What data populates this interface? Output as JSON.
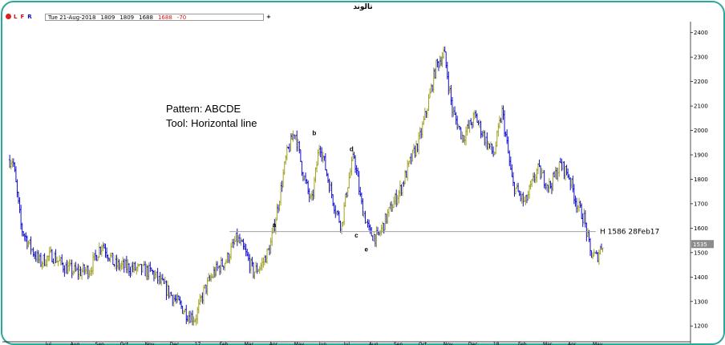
{
  "window": {
    "title": "تالوند"
  },
  "infobar": {
    "flags": [
      "L",
      "F",
      "R"
    ],
    "date": "Tue 21-Aug-2018",
    "open": "1809",
    "high": "1809",
    "low": "1688",
    "close": "1688",
    "change": "-70",
    "add_tab": "+"
  },
  "colors": {
    "frame": "#2aa89a",
    "up": "#a0a020",
    "down": "#1010d0",
    "hline": "#a0a0a0",
    "last_price_bg": "#8c8c8c",
    "highlight": "#e060e0"
  },
  "chart_data": {
    "type": "bar",
    "subtype": "ohlc",
    "title": "تالوند",
    "annotations": {
      "pattern": "Pattern: ABCDE",
      "tool": "Tool: Horizontal line"
    },
    "wave_labels": [
      {
        "label": "a",
        "x": "Apr-2017",
        "y": 1614
      },
      {
        "label": "b",
        "x": "Jun-2017",
        "y": 1990
      },
      {
        "label": "c",
        "x": "Jul-2017",
        "y": 1572
      },
      {
        "label": "d",
        "x": "Jul-2017",
        "y": 1925
      },
      {
        "label": "e",
        "x": "Aug-2017",
        "y": 1515
      }
    ],
    "horizontal_line": {
      "value": 1586,
      "label": "H 1586 28Feb17"
    },
    "last_price": "1535",
    "y_ticks": [
      1200,
      1300,
      1400,
      1500,
      1600,
      1700,
      1800,
      1900,
      2000,
      2100,
      2200,
      2300,
      2400
    ],
    "ylim": [
      1145,
      2445
    ],
    "x_ticks": [
      "Jul",
      "Aug",
      "Sep",
      "Oct",
      "Nov",
      "Dec",
      "17",
      "Feb",
      "Mar",
      "Apr",
      "May",
      "Jun",
      "Jul",
      "Aug",
      "Sep",
      "Oct",
      "Nov",
      "Dec",
      "18",
      "Feb",
      "Mar",
      "Apr",
      "May"
    ],
    "series": [
      {
        "kind": "approximate_close_path",
        "points": [
          [
            "Jun-2016",
            1880
          ],
          [
            "Jun-2016",
            1600
          ],
          [
            "Jun-2016",
            1530
          ],
          [
            "Jul-2016",
            1460
          ],
          [
            "Jul-2016",
            1490
          ],
          [
            "Aug-2016",
            1440
          ],
          [
            "Aug-2016",
            1420
          ],
          [
            "Sep-2016",
            1430
          ],
          [
            "Sep-2016",
            1540
          ],
          [
            "Oct-2016",
            1450
          ],
          [
            "Oct-2016",
            1440
          ],
          [
            "Nov-2016",
            1430
          ],
          [
            "Nov-2016",
            1420
          ],
          [
            "Dec-2016",
            1360
          ],
          [
            "Dec-2016",
            1300
          ],
          [
            "Jan-2017",
            1250
          ],
          [
            "Jan-2017",
            1230
          ],
          [
            "Jan-2017",
            1340
          ],
          [
            "Feb-2017",
            1420
          ],
          [
            "Feb-2017",
            1470
          ],
          [
            "Mar-2017",
            1560
          ],
          [
            "Mar-2017",
            1500
          ],
          [
            "Mar-2017",
            1420
          ],
          [
            "Apr-2017",
            1450
          ],
          [
            "Apr-2017",
            1520
          ],
          [
            "Apr-2017",
            1700
          ],
          [
            "May-2017",
            1900
          ],
          [
            "May-2017",
            2000
          ],
          [
            "May-2017",
            1820
          ],
          [
            "Jun-2017",
            1700
          ],
          [
            "Jun-2017",
            1950
          ],
          [
            "Jun-2017",
            1800
          ],
          [
            "Jul-2017",
            1680
          ],
          [
            "Jul-2017",
            1610
          ],
          [
            "Jul-2017",
            1780
          ],
          [
            "Jul-2017",
            1900
          ],
          [
            "Aug-2017",
            1700
          ],
          [
            "Aug-2017",
            1580
          ],
          [
            "Aug-2017",
            1560
          ],
          [
            "Sep-2017",
            1660
          ],
          [
            "Sep-2017",
            1760
          ],
          [
            "Oct-2017",
            1880
          ],
          [
            "Oct-2017",
            1960
          ],
          [
            "Oct-2017",
            2100
          ],
          [
            "Nov-2017",
            2260
          ],
          [
            "Nov-2017",
            2320
          ],
          [
            "Nov-2017",
            2080
          ],
          [
            "Dec-2017",
            1970
          ],
          [
            "Dec-2017",
            2060
          ],
          [
            "Jan-2018",
            1960
          ],
          [
            "Jan-2018",
            1900
          ],
          [
            "Jan-2018",
            2080
          ],
          [
            "Feb-2018",
            1780
          ],
          [
            "Feb-2018",
            1700
          ],
          [
            "Mar-2018",
            1840
          ],
          [
            "Mar-2018",
            1770
          ],
          [
            "Apr-2018",
            1860
          ],
          [
            "Apr-2018",
            1820
          ],
          [
            "Apr-2018",
            1700
          ],
          [
            "May-2018",
            1640
          ],
          [
            "May-2018",
            1500
          ],
          [
            "May-2018",
            1480
          ],
          [
            "May-2018",
            1540
          ]
        ]
      }
    ]
  }
}
